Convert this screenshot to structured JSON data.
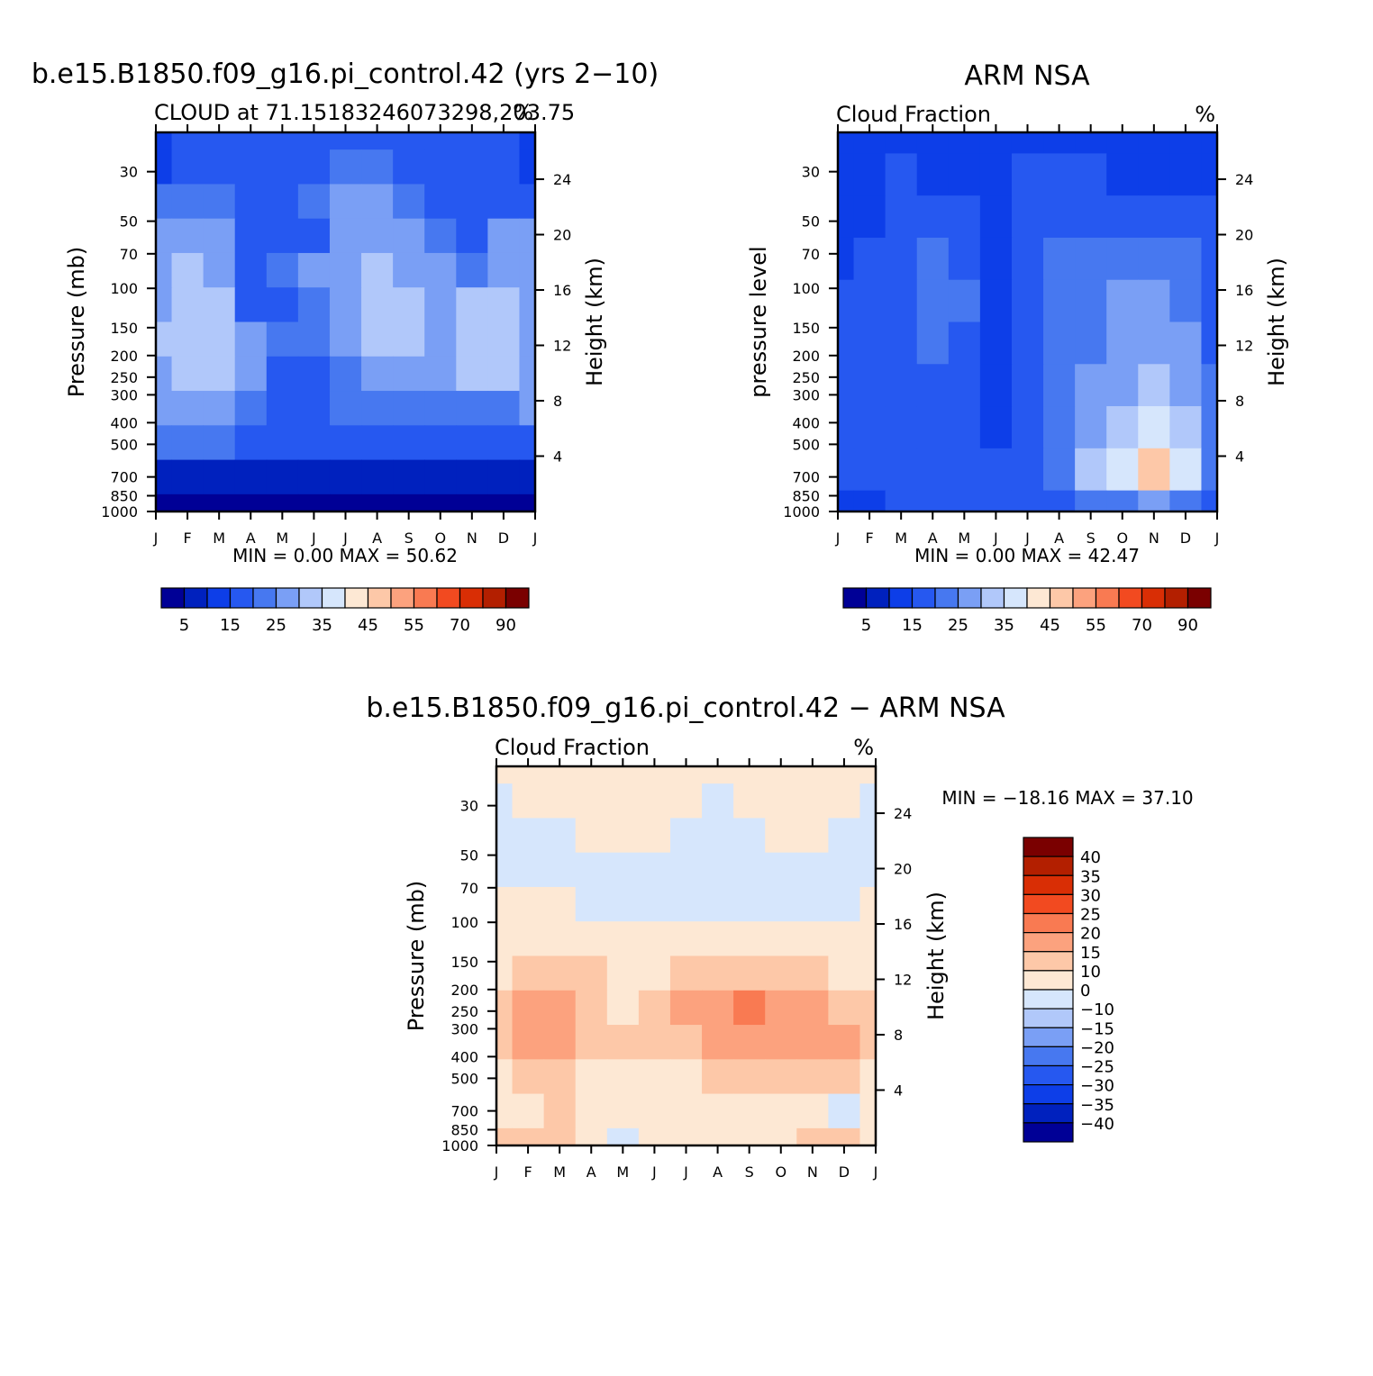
{
  "chart_data": [
    {
      "type": "heatmap",
      "title": "b.e15.B1850.f09_g16.pi_control.42 (yrs 2-10)",
      "left_label": "CLOUD at 71.15183246073298,203.75",
      "right_label": "%",
      "ylabel": "Pressure (mb)",
      "ylabel_right": "Height (km)",
      "x_tick_labels": [
        "J",
        "F",
        "M",
        "A",
        "M",
        "J",
        "J",
        "A",
        "S",
        "O",
        "N",
        "D",
        "J"
      ],
      "y_ticks": [
        30,
        50,
        70,
        100,
        150,
        200,
        250,
        300,
        400,
        500,
        700,
        850,
        1000
      ],
      "y_ticks_right": [
        24,
        20,
        16,
        12,
        8,
        4
      ],
      "ylim": [
        1000,
        20
      ],
      "y_scale": "log",
      "min_label": "MIN =",
      "min_value": "0.00",
      "max_label": "MAX =",
      "max_value": "50.62",
      "levels": [
        5,
        10,
        15,
        20,
        25,
        30,
        35,
        40,
        45,
        50,
        55,
        60,
        70,
        80,
        90
      ],
      "colorbar_labels": [
        "5",
        "15",
        "25",
        "35",
        "45",
        "55",
        "70",
        "90"
      ],
      "colorbar_colors": [
        "#000096",
        "#0021be",
        "#0d3ee8",
        "#2658f0",
        "#4778f0",
        "#7a9ff5",
        "#b1c8fa",
        "#d6e6fc",
        "#fde8d4",
        "#fdc8a8",
        "#fca27e",
        "#f97a52",
        "#f24a20",
        "#d92e05",
        "#b31f00",
        "#7a0000"
      ],
      "cells": [
        [
          2,
          3,
          3,
          3,
          3,
          3,
          3,
          3,
          3,
          3,
          3,
          3,
          2
        ],
        [
          2,
          3,
          3,
          3,
          3,
          3,
          4,
          4,
          3,
          3,
          3,
          3,
          2
        ],
        [
          4,
          4,
          4,
          3,
          3,
          4,
          5,
          5,
          4,
          3,
          3,
          3,
          3
        ],
        [
          5,
          5,
          5,
          3,
          3,
          3,
          5,
          5,
          5,
          4,
          3,
          5,
          5
        ],
        [
          5,
          6,
          5,
          3,
          4,
          5,
          5,
          6,
          5,
          5,
          4,
          5,
          5
        ],
        [
          5,
          6,
          6,
          3,
          3,
          4,
          5,
          6,
          6,
          5,
          6,
          6,
          5
        ],
        [
          6,
          6,
          6,
          5,
          4,
          4,
          5,
          6,
          6,
          5,
          6,
          6,
          5
        ],
        [
          5,
          6,
          6,
          5,
          3,
          3,
          4,
          5,
          5,
          5,
          6,
          6,
          5
        ],
        [
          5,
          5,
          5,
          4,
          3,
          3,
          4,
          4,
          4,
          4,
          4,
          4,
          5
        ],
        [
          4,
          4,
          4,
          3,
          3,
          3,
          3,
          3,
          3,
          3,
          3,
          3,
          3
        ],
        [
          1,
          1,
          1,
          1,
          1,
          1,
          1,
          1,
          1,
          1,
          1,
          1,
          1
        ],
        [
          0,
          0,
          0,
          0,
          0,
          0,
          0,
          0,
          0,
          0,
          0,
          0,
          0
        ]
      ]
    },
    {
      "type": "heatmap",
      "title": "ARM NSA",
      "left_label": "Cloud Fraction",
      "right_label": "%",
      "ylabel": "pressure level",
      "ylabel_right": "Height (km)",
      "x_tick_labels": [
        "J",
        "F",
        "M",
        "A",
        "M",
        "J",
        "J",
        "A",
        "S",
        "O",
        "N",
        "D",
        "J"
      ],
      "y_ticks": [
        30,
        50,
        70,
        100,
        150,
        200,
        250,
        300,
        400,
        500,
        700,
        850,
        1000
      ],
      "y_ticks_right": [
        24,
        20,
        16,
        12,
        8,
        4
      ],
      "ylim": [
        1000,
        20
      ],
      "y_scale": "log",
      "min_label": "MIN =",
      "min_value": "0.00",
      "max_label": "MAX =",
      "max_value": "42.47",
      "levels": [
        5,
        10,
        15,
        20,
        25,
        30,
        35,
        40,
        45,
        50,
        55,
        60,
        70,
        80,
        90
      ],
      "colorbar_labels": [
        "5",
        "15",
        "25",
        "35",
        "45",
        "55",
        "70",
        "90"
      ],
      "colorbar_colors": [
        "#000096",
        "#0021be",
        "#0d3ee8",
        "#2658f0",
        "#4778f0",
        "#7a9ff5",
        "#b1c8fa",
        "#d6e6fc",
        "#fde8d4",
        "#fdc8a8",
        "#fca27e",
        "#f97a52",
        "#f24a20",
        "#d92e05",
        "#b31f00",
        "#7a0000"
      ],
      "cells": [
        [
          2,
          2,
          2,
          2,
          2,
          2,
          2,
          2,
          2,
          2,
          2,
          2,
          2
        ],
        [
          2,
          2,
          3,
          2,
          2,
          2,
          3,
          3,
          3,
          2,
          2,
          2,
          2
        ],
        [
          2,
          2,
          3,
          3,
          3,
          2,
          3,
          3,
          3,
          3,
          3,
          3,
          3
        ],
        [
          2,
          3,
          3,
          4,
          3,
          2,
          3,
          4,
          4,
          4,
          4,
          4,
          3
        ],
        [
          3,
          3,
          3,
          4,
          4,
          2,
          3,
          4,
          4,
          5,
          5,
          4,
          3
        ],
        [
          3,
          3,
          3,
          4,
          3,
          2,
          3,
          4,
          4,
          5,
          5,
          5,
          3
        ],
        [
          3,
          3,
          3,
          3,
          3,
          2,
          3,
          4,
          5,
          5,
          6,
          5,
          4
        ],
        [
          3,
          3,
          3,
          3,
          3,
          2,
          3,
          4,
          5,
          6,
          7,
          6,
          4
        ],
        [
          3,
          3,
          3,
          3,
          3,
          3,
          3,
          4,
          6,
          7,
          9,
          7,
          4
        ],
        [
          2,
          2,
          3,
          3,
          3,
          3,
          3,
          3,
          4,
          4,
          5,
          4,
          3
        ]
      ]
    },
    {
      "type": "heatmap",
      "title": "b.e15.B1850.f09_g16.pi_control.42 - ARM NSA",
      "left_label": "Cloud Fraction",
      "right_label": "%",
      "ylabel": "Pressure (mb)",
      "ylabel_right": "Height (km)",
      "x_tick_labels": [
        "J",
        "F",
        "M",
        "A",
        "M",
        "J",
        "J",
        "A",
        "S",
        "O",
        "N",
        "D",
        "J"
      ],
      "y_ticks": [
        30,
        50,
        70,
        100,
        150,
        200,
        250,
        300,
        400,
        500,
        700,
        850,
        1000
      ],
      "y_ticks_right": [
        24,
        20,
        16,
        12,
        8,
        4
      ],
      "ylim": [
        1000,
        20
      ],
      "y_scale": "log",
      "min_label": "MIN =",
      "min_value": "-18.16",
      "max_label": "MAX =",
      "max_value": "37.10",
      "levels": [
        -40,
        -35,
        -30,
        -25,
        -20,
        -15,
        -10,
        0,
        10,
        15,
        20,
        25,
        30,
        35,
        40
      ],
      "colorbar_labels": [
        "40",
        "35",
        "30",
        "25",
        "20",
        "15",
        "10",
        "0",
        "-10",
        "-15",
        "-20",
        "-25",
        "-30",
        "-35",
        "-40"
      ],
      "colorbar_colors": [
        "#000096",
        "#0021be",
        "#0d3ee8",
        "#2658f0",
        "#4778f0",
        "#7a9ff5",
        "#b1c8fa",
        "#d6e6fc",
        "#fde8d4",
        "#fdc8a8",
        "#fca27e",
        "#f97a52",
        "#f24a20",
        "#d92e05",
        "#b31f00",
        "#7a0000"
      ],
      "cells": [
        [
          8,
          8,
          8,
          8,
          8,
          8,
          8,
          8,
          8,
          8,
          8,
          8,
          8
        ],
        [
          7,
          8,
          8,
          8,
          8,
          8,
          8,
          7,
          8,
          8,
          8,
          8,
          7
        ],
        [
          7,
          7,
          7,
          8,
          8,
          8,
          7,
          7,
          7,
          8,
          8,
          7,
          7
        ],
        [
          7,
          7,
          7,
          7,
          7,
          7,
          7,
          7,
          7,
          7,
          7,
          7,
          7
        ],
        [
          8,
          8,
          8,
          7,
          7,
          7,
          7,
          7,
          7,
          7,
          7,
          7,
          8
        ],
        [
          8,
          8,
          8,
          8,
          8,
          8,
          8,
          8,
          8,
          8,
          8,
          8,
          8
        ],
        [
          8,
          9,
          9,
          9,
          8,
          8,
          9,
          9,
          9,
          9,
          9,
          8,
          8
        ],
        [
          9,
          10,
          10,
          9,
          8,
          9,
          10,
          10,
          11,
          10,
          10,
          9,
          9
        ],
        [
          9,
          10,
          10,
          9,
          9,
          9,
          9,
          10,
          10,
          10,
          10,
          10,
          9
        ],
        [
          8,
          9,
          9,
          8,
          8,
          8,
          8,
          9,
          9,
          9,
          9,
          9,
          8
        ],
        [
          8,
          8,
          9,
          8,
          8,
          8,
          8,
          8,
          8,
          8,
          8,
          7,
          8
        ],
        [
          9,
          9,
          9,
          8,
          7,
          8,
          8,
          8,
          8,
          8,
          9,
          9,
          8
        ]
      ]
    }
  ]
}
